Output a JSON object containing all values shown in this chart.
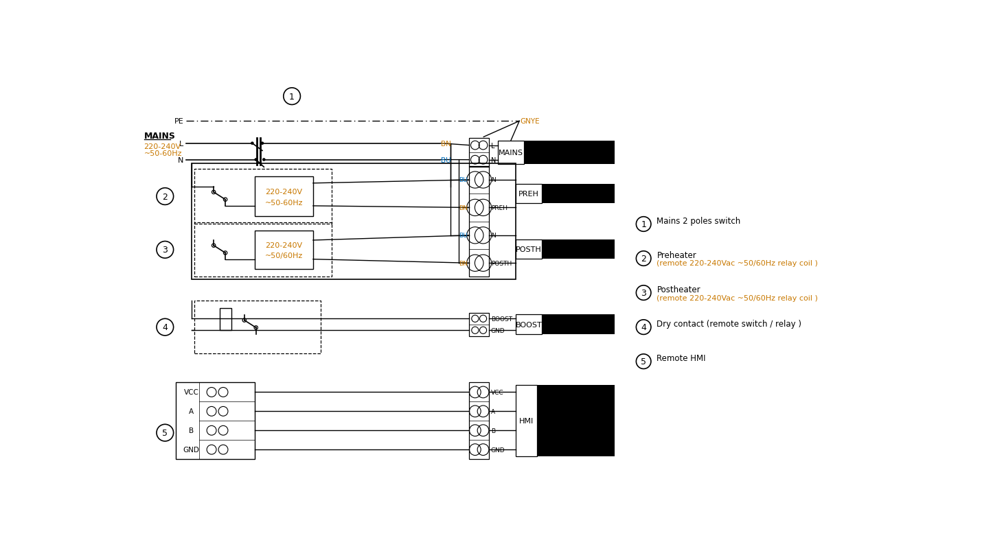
{
  "bg_color": "#ffffff",
  "line_color": "#000000",
  "orange_color": "#c87800",
  "blue_color": "#0070c0",
  "figsize": [
    14.62,
    8.04
  ],
  "dpi": 100,
  "legend_items": [
    {
      "num": "1",
      "line1": "Mains 2 poles switch",
      "line2": ""
    },
    {
      "num": "2",
      "line1": "Preheater",
      "line2": "(remote 220-240Vac ~50/60Hz relay coil )"
    },
    {
      "num": "3",
      "line1": "Postheater",
      "line2": "(remote 220-240Vac ~50/60Hz relay coil )"
    },
    {
      "num": "4",
      "line1": "Dry contact (remote switch / relay )",
      "line2": ""
    },
    {
      "num": "5",
      "line1": "Remote HMI",
      "line2": ""
    }
  ]
}
